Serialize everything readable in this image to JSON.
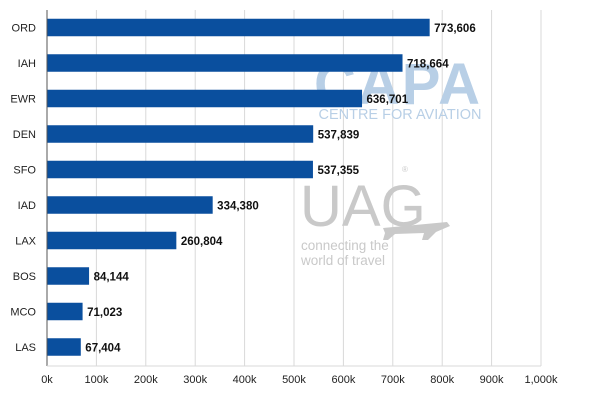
{
  "chart_data": {
    "type": "bar",
    "orientation": "horizontal",
    "categories": [
      "ORD",
      "IAH",
      "EWR",
      "DEN",
      "SFO",
      "IAD",
      "LAX",
      "BOS",
      "MCO",
      "LAS"
    ],
    "values": [
      773606,
      718664,
      636701,
      537839,
      537355,
      334380,
      260804,
      84144,
      71023,
      67404
    ],
    "value_labels": [
      "773,606",
      "718,664",
      "636,701",
      "537,839",
      "537,355",
      "334,380",
      "260,804",
      "84,144",
      "71,023",
      "67,404"
    ],
    "x_ticks": [
      0,
      100000,
      200000,
      300000,
      400000,
      500000,
      600000,
      700000,
      800000,
      900000,
      1000000
    ],
    "x_tick_labels": [
      "0k",
      "100k",
      "200k",
      "300k",
      "400k",
      "500k",
      "600k",
      "700k",
      "800k",
      "900k",
      "1,000k"
    ],
    "xlim": [
      0,
      1000000
    ],
    "grid": "vertical",
    "title": "",
    "xlabel": "",
    "ylabel": "",
    "colors": {
      "bar": "#0a4f9e",
      "grid": "#d9d9d9"
    }
  },
  "watermark": {
    "capa_logo": "CAPA",
    "capa_sub": "CENTRE FOR AVIATION",
    "uag_logo": "UAG",
    "uag_line1": "connecting the",
    "uag_line2": "world of travel",
    "colors": {
      "capa": "#b8cfe6",
      "uag": "#c9c9c9"
    }
  }
}
